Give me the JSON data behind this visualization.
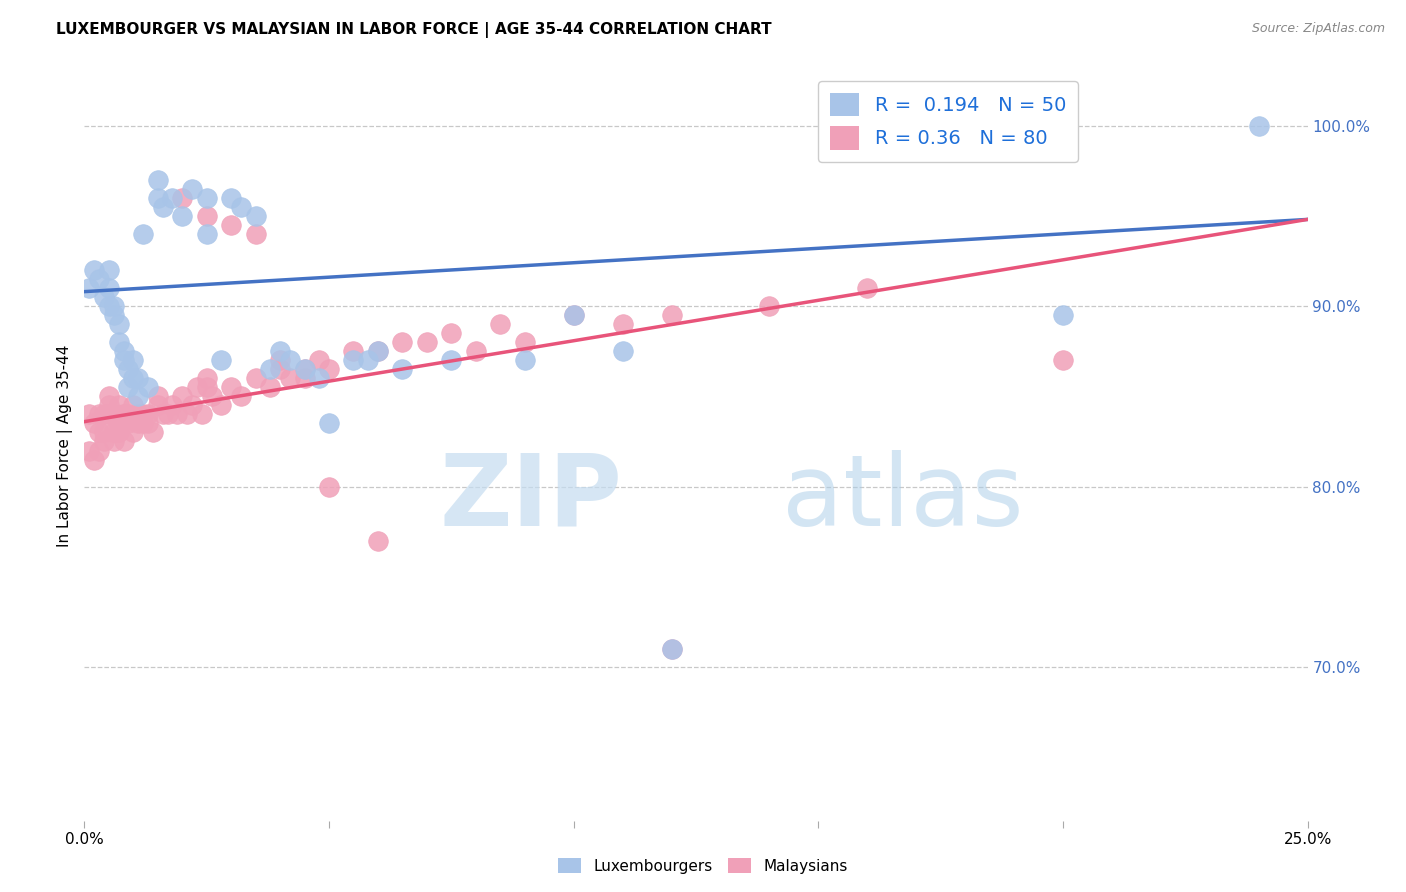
{
  "title": "LUXEMBOURGER VS MALAYSIAN IN LABOR FORCE | AGE 35-44 CORRELATION CHART",
  "source": "Source: ZipAtlas.com",
  "ylabel": "In Labor Force | Age 35-44",
  "right_yticks": [
    "100.0%",
    "90.0%",
    "80.0%",
    "70.0%"
  ],
  "right_ytick_vals": [
    1.0,
    0.9,
    0.8,
    0.7
  ],
  "xmin": 0.0,
  "xmax": 0.25,
  "ymin": 0.615,
  "ymax": 1.03,
  "R_lux": 0.194,
  "N_lux": 50,
  "R_mal": 0.36,
  "N_mal": 80,
  "color_lux": "#A8C4E8",
  "color_mal": "#F0A0B8",
  "color_lux_line": "#4472C4",
  "color_mal_line": "#E8547A",
  "legend_R_color": "#1E6FD9",
  "watermark_zip": "ZIP",
  "watermark_atlas": "atlas",
  "lux_x": [
    0.001,
    0.002,
    0.003,
    0.004,
    0.005,
    0.005,
    0.005,
    0.006,
    0.006,
    0.007,
    0.007,
    0.008,
    0.008,
    0.009,
    0.009,
    0.01,
    0.01,
    0.011,
    0.011,
    0.012,
    0.013,
    0.015,
    0.015,
    0.016,
    0.018,
    0.02,
    0.022,
    0.025,
    0.025,
    0.028,
    0.03,
    0.032,
    0.035,
    0.038,
    0.04,
    0.042,
    0.045,
    0.048,
    0.05,
    0.055,
    0.058,
    0.06,
    0.065,
    0.075,
    0.09,
    0.1,
    0.11,
    0.12,
    0.2,
    0.24
  ],
  "lux_y": [
    0.91,
    0.92,
    0.915,
    0.905,
    0.92,
    0.9,
    0.91,
    0.895,
    0.9,
    0.88,
    0.89,
    0.87,
    0.875,
    0.855,
    0.865,
    0.86,
    0.87,
    0.85,
    0.86,
    0.94,
    0.855,
    0.96,
    0.97,
    0.955,
    0.96,
    0.95,
    0.965,
    0.96,
    0.94,
    0.87,
    0.96,
    0.955,
    0.95,
    0.865,
    0.875,
    0.87,
    0.865,
    0.86,
    0.835,
    0.87,
    0.87,
    0.875,
    0.865,
    0.87,
    0.87,
    0.895,
    0.875,
    0.71,
    0.895,
    1.0
  ],
  "mal_x": [
    0.001,
    0.001,
    0.002,
    0.002,
    0.003,
    0.003,
    0.003,
    0.004,
    0.004,
    0.004,
    0.005,
    0.005,
    0.005,
    0.006,
    0.006,
    0.006,
    0.007,
    0.007,
    0.007,
    0.008,
    0.008,
    0.008,
    0.009,
    0.009,
    0.01,
    0.01,
    0.011,
    0.011,
    0.012,
    0.012,
    0.013,
    0.013,
    0.014,
    0.015,
    0.015,
    0.016,
    0.017,
    0.018,
    0.019,
    0.02,
    0.021,
    0.022,
    0.023,
    0.024,
    0.025,
    0.025,
    0.026,
    0.028,
    0.03,
    0.032,
    0.035,
    0.038,
    0.04,
    0.042,
    0.045,
    0.048,
    0.05,
    0.055,
    0.06,
    0.065,
    0.07,
    0.075,
    0.08,
    0.085,
    0.09,
    0.1,
    0.11,
    0.12,
    0.14,
    0.16,
    0.02,
    0.025,
    0.03,
    0.035,
    0.04,
    0.045,
    0.05,
    0.06,
    0.12,
    0.2
  ],
  "mal_y": [
    0.84,
    0.82,
    0.835,
    0.815,
    0.83,
    0.82,
    0.84,
    0.825,
    0.84,
    0.83,
    0.84,
    0.845,
    0.85,
    0.825,
    0.84,
    0.83,
    0.845,
    0.835,
    0.83,
    0.84,
    0.825,
    0.84,
    0.84,
    0.835,
    0.83,
    0.845,
    0.835,
    0.84,
    0.84,
    0.835,
    0.84,
    0.835,
    0.83,
    0.845,
    0.85,
    0.84,
    0.84,
    0.845,
    0.84,
    0.85,
    0.84,
    0.845,
    0.855,
    0.84,
    0.855,
    0.86,
    0.85,
    0.845,
    0.855,
    0.85,
    0.86,
    0.855,
    0.865,
    0.86,
    0.865,
    0.87,
    0.865,
    0.875,
    0.875,
    0.88,
    0.88,
    0.885,
    0.875,
    0.89,
    0.88,
    0.895,
    0.89,
    0.895,
    0.9,
    0.91,
    0.96,
    0.95,
    0.945,
    0.94,
    0.87,
    0.86,
    0.8,
    0.77,
    0.71,
    0.87
  ],
  "background_color": "#FFFFFF",
  "grid_color": "#C8C8C8",
  "lux_trend_x0": 0.0,
  "lux_trend_y0": 0.908,
  "lux_trend_x1": 0.25,
  "lux_trend_y1": 0.948,
  "mal_trend_x0": 0.0,
  "mal_trend_y0": 0.836,
  "mal_trend_x1": 0.25,
  "mal_trend_y1": 0.948
}
